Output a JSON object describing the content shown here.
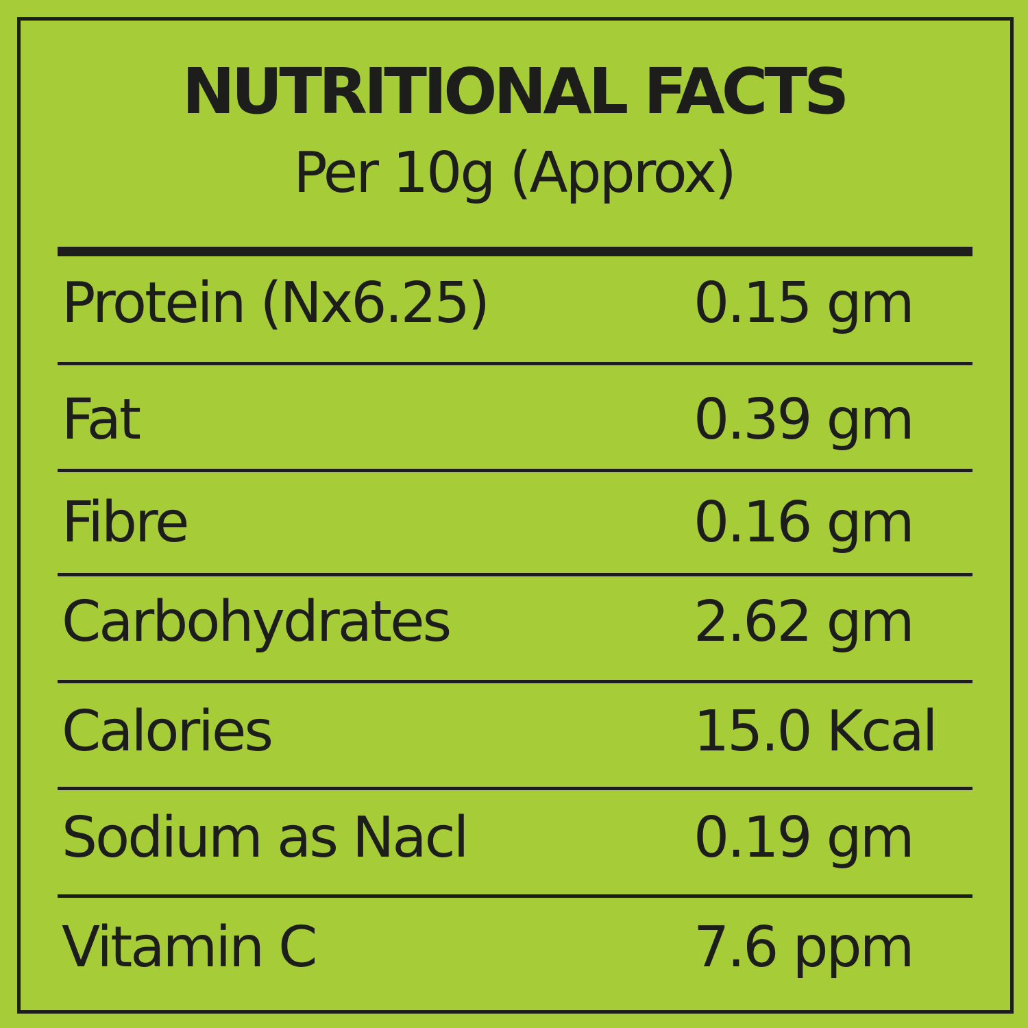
{
  "header": {
    "title": "NUTRITIONAL FACTS",
    "subtitle": "Per 10g (Approx)"
  },
  "table": {
    "rows": [
      [
        "Protein (Nx6.25)",
        "0.15 gm"
      ],
      [
        "Fat",
        "0.39 gm"
      ],
      [
        "Fibre",
        "0.16 gm"
      ],
      [
        "Carbohydrates",
        "2.62 gm"
      ],
      [
        "Calories",
        "15.0 Kcal"
      ],
      [
        "Sodium as Nacl",
        "0.19 gm"
      ],
      [
        "Vitamin C",
        "7.6 ppm"
      ]
    ]
  }
}
